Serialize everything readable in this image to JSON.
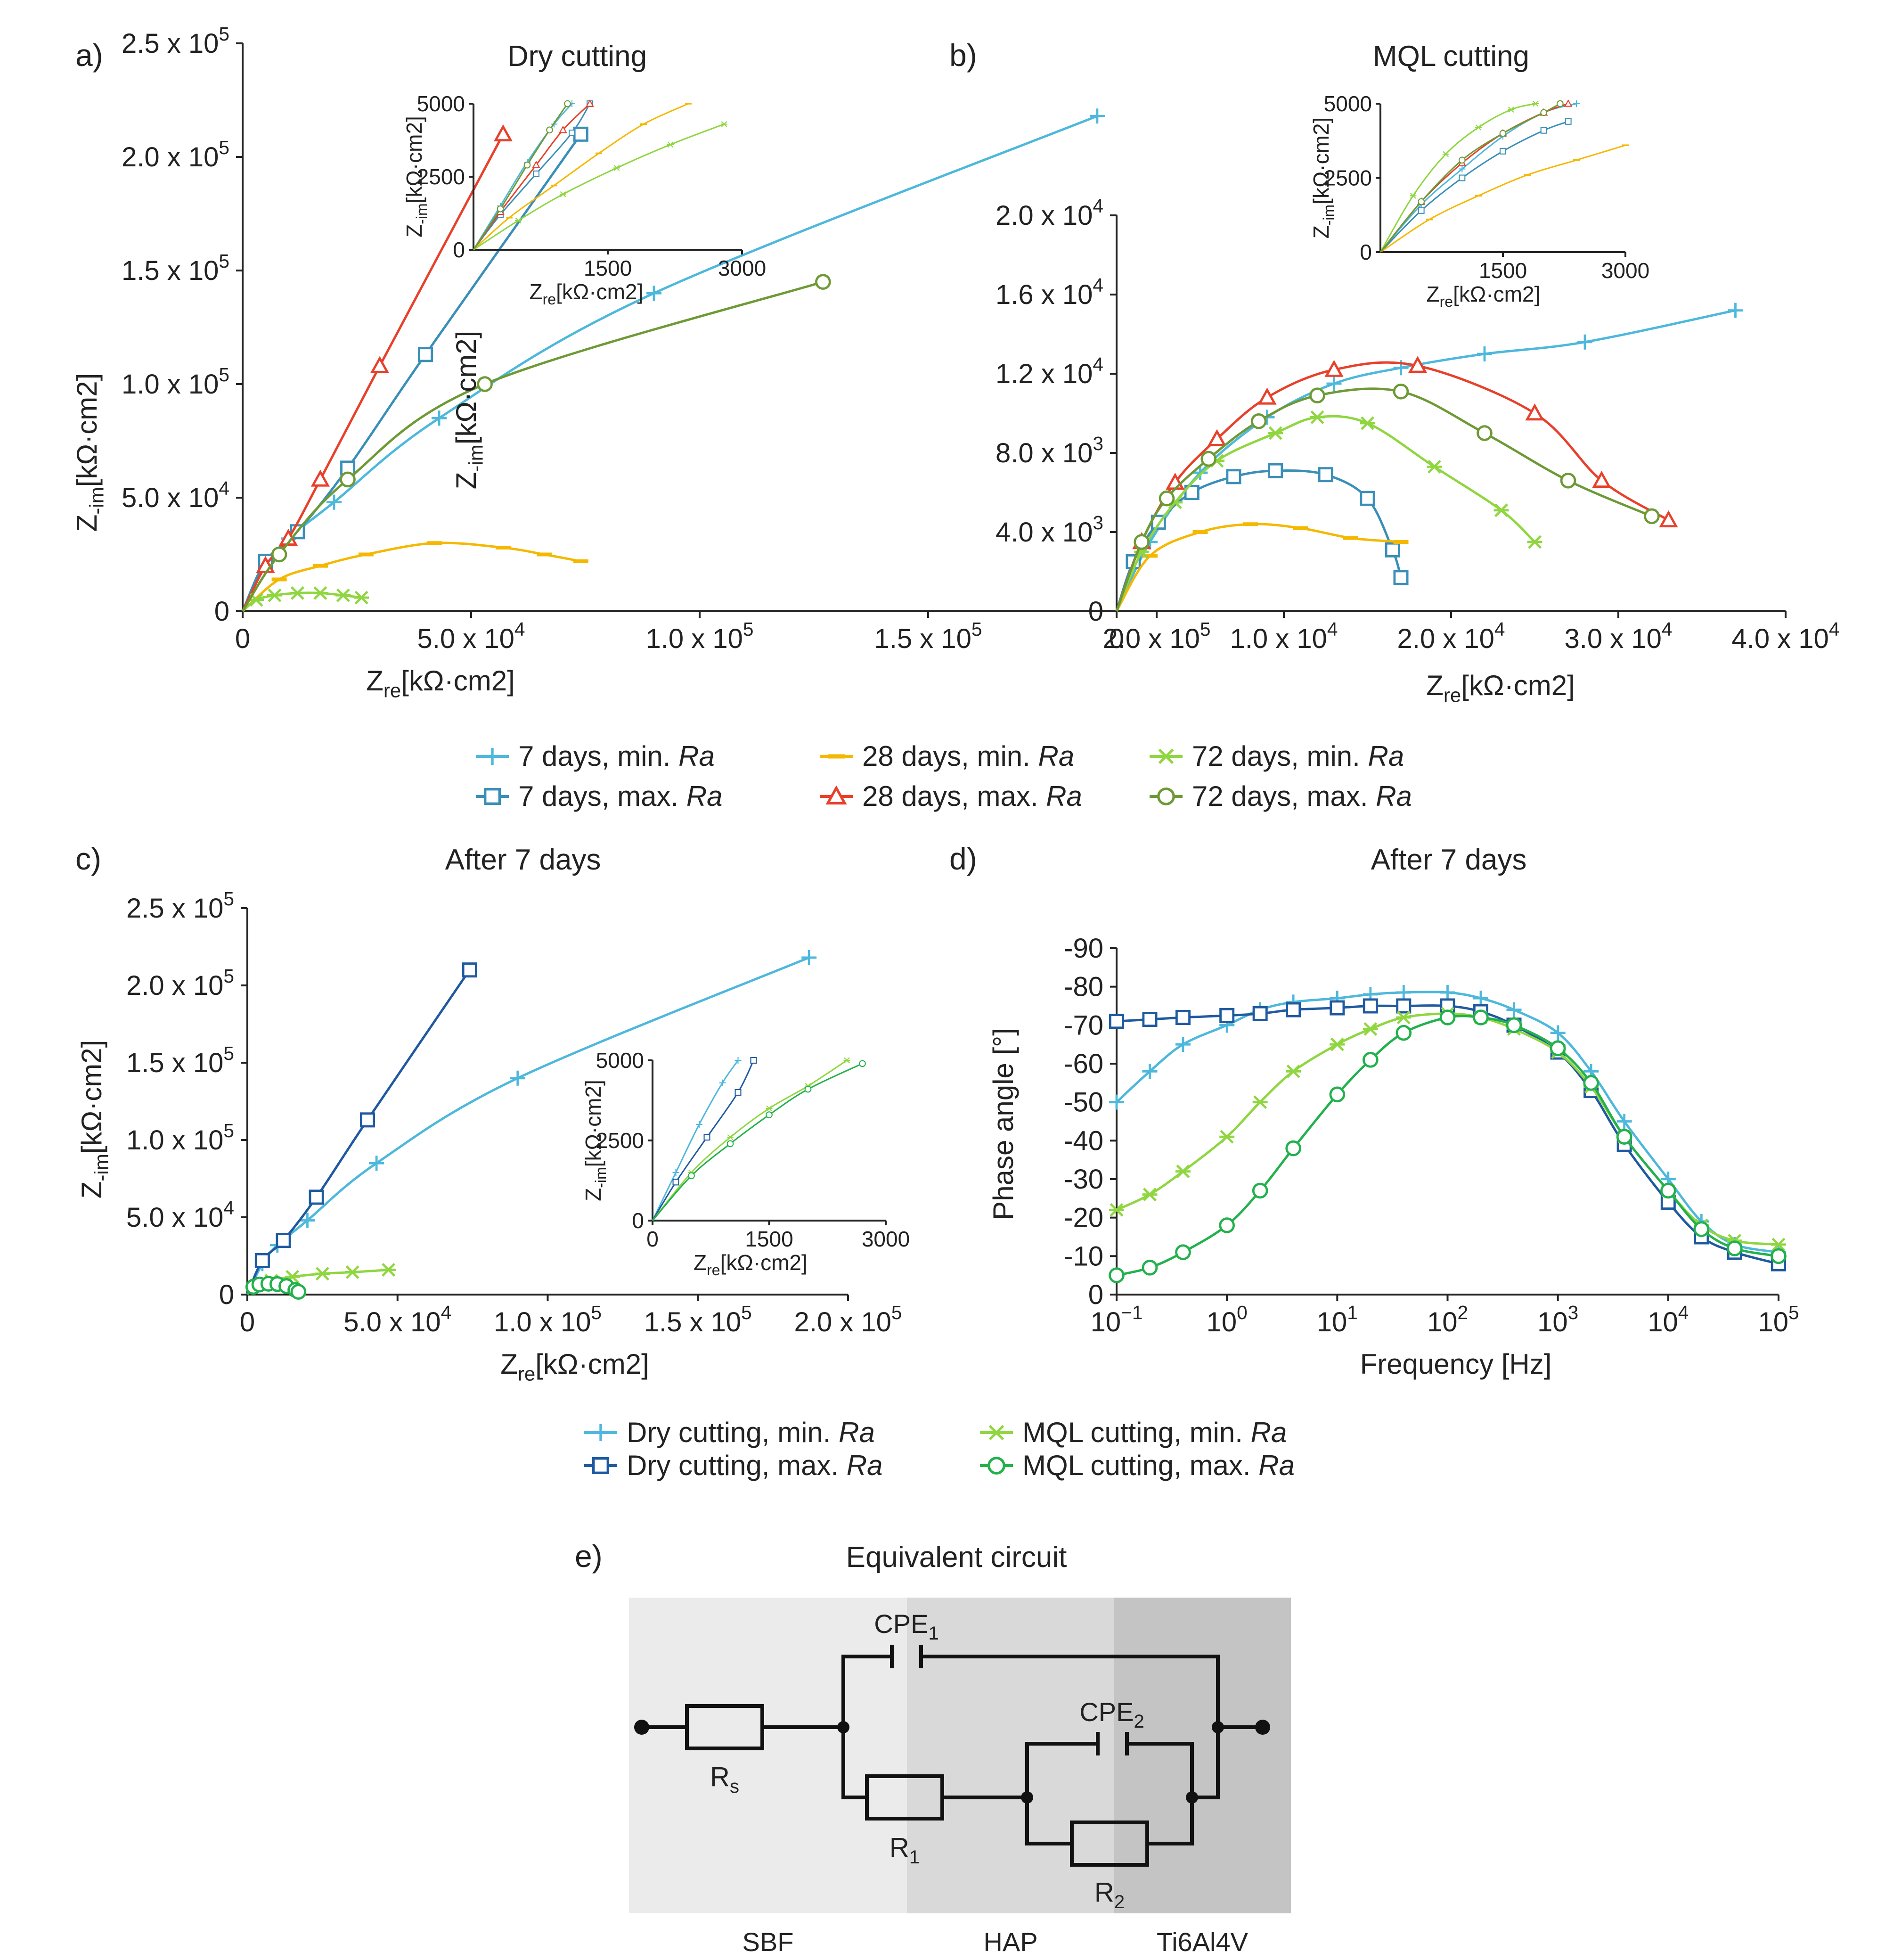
{
  "colors": {
    "dry_7_min": "#4db8dc",
    "dry_7_max": "#3a8fb8",
    "dry_28_min": "#f5b800",
    "dry_28_max": "#e8402a",
    "dry_72_min": "#8fd640",
    "dry_72_max": "#6e9a36",
    "c_dry_min": "#4db8dc",
    "c_dry_max": "#1f5aa0",
    "c_mql_min": "#8fd640",
    "c_mql_max": "#22b14c"
  },
  "panel_letters": {
    "a": "a)",
    "b": "b)",
    "c": "c)",
    "d": "d)",
    "e": "e)"
  },
  "chart_data": [
    {
      "id": "a",
      "type": "line",
      "title": "Dry cutting",
      "xlabel": "Zre[kΩ·cm²]",
      "ylabel": "Z-im[kΩ·cm²]",
      "xlim": [
        0,
        200000
      ],
      "ylim": [
        0,
        250000
      ],
      "xticks": [
        "0",
        "5.0 x 10⁴",
        "1.0 x 10⁵",
        "1.5 x 10⁵",
        "2.0 x 10⁵"
      ],
      "yticks": [
        "0",
        "5.0 x 10⁴",
        "1.0 x 10⁵",
        "1.5 x 10⁵",
        "2.0 x 10⁵",
        "2.5 x 10⁵"
      ],
      "series": [
        {
          "name": "7 days, min. Ra",
          "marker": "plus",
          "x": [
            0,
            5000,
            10000,
            20000,
            43000,
            90000,
            187000
          ],
          "y": [
            0,
            20000,
            32000,
            48000,
            85000,
            140000,
            218000
          ]
        },
        {
          "name": "7 days, max. Ra",
          "marker": "square",
          "x": [
            0,
            5000,
            12000,
            23000,
            40000,
            74000
          ],
          "y": [
            0,
            22000,
            35000,
            63000,
            113000,
            210000
          ]
        },
        {
          "name": "28 days, min. Ra",
          "marker": "dash",
          "x": [
            0,
            8000,
            17000,
            27000,
            42000,
            57000,
            66000,
            74000
          ],
          "y": [
            0,
            14000,
            20000,
            25000,
            30000,
            28000,
            25000,
            22000
          ]
        },
        {
          "name": "28 days, max. Ra",
          "marker": "triangle",
          "x": [
            0,
            5000,
            10000,
            17000,
            30000,
            57000
          ],
          "y": [
            0,
            20000,
            32000,
            58000,
            108000,
            210000
          ]
        },
        {
          "name": "72 days, min. Ra",
          "marker": "star",
          "x": [
            0,
            3000,
            7000,
            12000,
            17000,
            22000,
            26000
          ],
          "y": [
            0,
            5000,
            7000,
            8000,
            8000,
            7000,
            6000
          ]
        },
        {
          "name": "72 days, max. Ra",
          "marker": "circle",
          "x": [
            0,
            8000,
            23000,
            53000,
            127000
          ],
          "y": [
            0,
            25000,
            58000,
            100000,
            145000
          ]
        }
      ],
      "inset": {
        "xlabel": "Zre[kΩ·cm²]",
        "ylabel": "Z-im[kΩ·cm²]",
        "xlim": [
          0,
          3000
        ],
        "ylim": [
          0,
          5000
        ],
        "xticks": [
          "1500",
          "3000"
        ],
        "yticks": [
          "0",
          "2500",
          "5000"
        ],
        "series": [
          {
            "marker": "plus",
            "x": [
              0,
              300,
              600,
              900,
              1100
            ],
            "y": [
              0,
              1500,
              3000,
              4300,
              5000
            ]
          },
          {
            "marker": "square",
            "x": [
              0,
              300,
              700,
              1100,
              1300
            ],
            "y": [
              0,
              1200,
              2600,
              4000,
              5000
            ]
          },
          {
            "marker": "dash",
            "x": [
              0,
              400,
              900,
              1400,
              1900,
              2400
            ],
            "y": [
              0,
              1100,
              2200,
              3300,
              4300,
              5000
            ]
          },
          {
            "marker": "triangle",
            "x": [
              0,
              300,
              700,
              1000,
              1300
            ],
            "y": [
              0,
              1300,
              2900,
              4100,
              5000
            ]
          },
          {
            "marker": "star",
            "x": [
              0,
              500,
              1000,
              1600,
              2200,
              2800
            ],
            "y": [
              0,
              1000,
              1900,
              2800,
              3600,
              4300
            ]
          },
          {
            "marker": "circle",
            "x": [
              0,
              300,
              600,
              850,
              1050
            ],
            "y": [
              0,
              1400,
              2900,
              4100,
              5000
            ]
          }
        ]
      }
    },
    {
      "id": "b",
      "type": "line",
      "title": "MQL cutting",
      "xlabel": "Zre[kΩ·cm²]",
      "ylabel": "Z-im[kΩ·cm²]",
      "xlim": [
        0,
        40000
      ],
      "ylim": [
        0,
        20000
      ],
      "xticks": [
        "0",
        "1.0 x 10⁴",
        "2.0 x 10⁴",
        "3.0 x 10⁴",
        "4.0 x 10⁴"
      ],
      "yticks": [
        "0",
        "4.0 x 10³",
        "8.0 x 10³",
        "1.2 x 10⁴",
        "1.6 x 10⁴",
        "2.0 x 10⁴"
      ],
      "series": [
        {
          "name": "7 days, min. Ra",
          "marker": "plus",
          "x": [
            0,
            2000,
            5000,
            9000,
            13000,
            17000,
            22000,
            28000,
            37000
          ],
          "y": [
            0,
            3500,
            7000,
            9800,
            11500,
            12300,
            13000,
            13600,
            15200
          ]
        },
        {
          "name": "7 days, max. Ra",
          "marker": "square",
          "x": [
            0,
            1000,
            2500,
            4500,
            7000,
            9500,
            12500,
            15000,
            16500,
            17000
          ],
          "y": [
            0,
            2500,
            4500,
            6000,
            6800,
            7100,
            6900,
            5700,
            3100,
            1700
          ]
        },
        {
          "name": "28 days, min. Ra",
          "marker": "dash",
          "x": [
            0,
            2000,
            5000,
            8000,
            11000,
            14000,
            17000
          ],
          "y": [
            0,
            2800,
            4000,
            4400,
            4200,
            3700,
            3500
          ]
        },
        {
          "name": "28 days, max. Ra",
          "marker": "triangle",
          "x": [
            0,
            1500,
            3500,
            6000,
            9000,
            13000,
            18000,
            25000,
            29000,
            33000
          ],
          "y": [
            0,
            3500,
            6500,
            8700,
            10800,
            12200,
            12400,
            10000,
            6600,
            4600
          ]
        },
        {
          "name": "72 days, min. Ra",
          "marker": "star",
          "x": [
            0,
            1500,
            3500,
            6000,
            9500,
            12000,
            15000,
            19000,
            23000,
            25000
          ],
          "y": [
            0,
            3000,
            5500,
            7600,
            9000,
            9800,
            9500,
            7300,
            5100,
            3500
          ]
        },
        {
          "name": "72 days, max. Ra",
          "marker": "circle",
          "x": [
            0,
            1500,
            3000,
            5500,
            8500,
            12000,
            17000,
            22000,
            27000,
            32000
          ],
          "y": [
            0,
            3500,
            5700,
            7700,
            9600,
            10900,
            11100,
            9000,
            6600,
            4800
          ]
        }
      ],
      "inset": {
        "xlabel": "Zre[kΩ·cm²]",
        "ylabel": "Z-im[kΩ·cm²]",
        "xlim": [
          0,
          3000
        ],
        "ylim": [
          0,
          5000
        ],
        "xticks": [
          "1500",
          "3000"
        ],
        "yticks": [
          "0",
          "2500",
          "5000"
        ],
        "series": [
          {
            "marker": "plus",
            "x": [
              0,
              500,
              1000,
              1500,
              2000,
              2400
            ],
            "y": [
              0,
              1600,
              2800,
              3900,
              4700,
              5000
            ]
          },
          {
            "marker": "square",
            "x": [
              0,
              500,
              1000,
              1500,
              2000,
              2300
            ],
            "y": [
              0,
              1400,
              2500,
              3400,
              4100,
              4400
            ]
          },
          {
            "marker": "dash",
            "x": [
              0,
              600,
              1200,
              1800,
              2400,
              3000
            ],
            "y": [
              0,
              1100,
              1900,
              2600,
              3100,
              3600
            ]
          },
          {
            "marker": "triangle",
            "x": [
              0,
              500,
              1000,
              1500,
              2000,
              2300
            ],
            "y": [
              0,
              1700,
              3000,
              4000,
              4700,
              5000
            ]
          },
          {
            "marker": "star",
            "x": [
              0,
              400,
              800,
              1200,
              1600,
              1900
            ],
            "y": [
              0,
              1900,
              3300,
              4200,
              4800,
              5000
            ]
          },
          {
            "marker": "circle",
            "x": [
              0,
              500,
              1000,
              1500,
              2000,
              2200
            ],
            "y": [
              0,
              1700,
              3100,
              4000,
              4700,
              5000
            ]
          }
        ]
      }
    },
    {
      "id": "c",
      "type": "line",
      "title": "After 7 days",
      "xlabel": "Zre[kΩ·cm²]",
      "ylabel": "Z-im[kΩ·cm²]",
      "xlim": [
        0,
        200000
      ],
      "ylim": [
        0,
        250000
      ],
      "xticks": [
        "0",
        "5.0 x 10⁴",
        "1.0 x 10⁵",
        "1.5 x 10⁵",
        "2.0 x 10⁵"
      ],
      "yticks": [
        "0",
        "5.0 x 10⁴",
        "1.0 x 10⁵",
        "1.5 x 10⁵",
        "2.0 x 10⁵",
        "2.5 x 10⁵"
      ],
      "series": [
        {
          "name": "Dry cutting, min. Ra",
          "marker": "plus",
          "x": [
            0,
            5000,
            10000,
            20000,
            43000,
            90000,
            187000
          ],
          "y": [
            0,
            20000,
            32000,
            48000,
            85000,
            140000,
            218000
          ]
        },
        {
          "name": "Dry cutting, max. Ra",
          "marker": "square",
          "x": [
            0,
            5000,
            12000,
            23000,
            40000,
            74000
          ],
          "y": [
            0,
            22000,
            35000,
            63000,
            113000,
            210000
          ]
        },
        {
          "name": "MQL cutting, min. Ra",
          "marker": "star",
          "x": [
            0,
            3000,
            8000,
            15000,
            25000,
            35000,
            47000
          ],
          "y": [
            0,
            6000,
            9000,
            11500,
            13500,
            14500,
            16000
          ]
        },
        {
          "name": "MQL cutting, max. Ra",
          "marker": "circle",
          "x": [
            0,
            2000,
            4000,
            7000,
            10000,
            13000,
            16000,
            17000
          ],
          "y": [
            0,
            5000,
            6500,
            7000,
            6800,
            5500,
            3000,
            1800
          ]
        }
      ],
      "inset": {
        "xlabel": "Zre[kΩ·cm²]",
        "ylabel": "Z-im[kΩ·cm²]",
        "xlim": [
          0,
          3000
        ],
        "ylim": [
          0,
          5000
        ],
        "xticks": [
          "0",
          "1500",
          "3000"
        ],
        "yticks": [
          "0",
          "2500",
          "5000"
        ],
        "series": [
          {
            "marker": "plus",
            "x": [
              0,
              300,
              600,
              900,
              1100
            ],
            "y": [
              0,
              1500,
              3000,
              4300,
              5000
            ]
          },
          {
            "marker": "square",
            "x": [
              0,
              300,
              700,
              1100,
              1300
            ],
            "y": [
              0,
              1200,
              2600,
              4000,
              5000
            ]
          },
          {
            "marker": "star",
            "x": [
              0,
              500,
              1000,
              1500,
              2000,
              2500
            ],
            "y": [
              0,
              1500,
              2600,
              3500,
              4200,
              5000
            ]
          },
          {
            "marker": "circle",
            "x": [
              0,
              500,
              1000,
              1500,
              2000,
              2700
            ],
            "y": [
              0,
              1400,
              2400,
              3300,
              4100,
              4900
            ]
          }
        ]
      }
    },
    {
      "id": "d",
      "type": "line",
      "title": "After 7 days",
      "xlabel": "Frequency [Hz]",
      "ylabel": "Phase angle [°]",
      "xscale": "log",
      "xlim": [
        0.1,
        100000
      ],
      "ylim": [
        0,
        -90
      ],
      "xticks": [
        "10⁻¹",
        "10⁰",
        "10¹",
        "10²",
        "10³",
        "10⁴",
        "10⁵"
      ],
      "yticks": [
        "0",
        "-10",
        "-20",
        "-30",
        "-40",
        "-50",
        "-60",
        "-70",
        "-80",
        "-90"
      ],
      "x": [
        0.1,
        0.2,
        0.4,
        1,
        2,
        4,
        10,
        20,
        40,
        100,
        200,
        400,
        1000,
        2000,
        4000,
        10000,
        20000,
        40000,
        100000
      ],
      "series": [
        {
          "name": "Dry cutting, min. Ra",
          "marker": "plus",
          "y": [
            -50,
            -58,
            -65,
            -70,
            -74,
            -76,
            -77,
            -78,
            -78.5,
            -78.5,
            -77,
            -74,
            -68,
            -58,
            -45,
            -30,
            -19,
            -13,
            -11
          ]
        },
        {
          "name": "Dry cutting, max. Ra",
          "marker": "square",
          "y": [
            -71,
            -71.5,
            -72,
            -72.5,
            -73,
            -74,
            -74.5,
            -75,
            -75,
            -75,
            -73.5,
            -70,
            -63,
            -53,
            -39,
            -24,
            -15,
            -11,
            -8
          ]
        },
        {
          "name": "MQL cutting, min. Ra",
          "marker": "star",
          "y": [
            -22,
            -26,
            -32,
            -41,
            -50,
            -58,
            -65,
            -69,
            -72,
            -73,
            -72,
            -69,
            -63,
            -54,
            -41,
            -27,
            -18,
            -14,
            -13
          ]
        },
        {
          "name": "MQL cutting, max. Ra",
          "marker": "circle",
          "y": [
            -5,
            -7,
            -11,
            -18,
            -27,
            -38,
            -52,
            -61,
            -68,
            -72,
            -72,
            -70,
            -64,
            -55,
            -41,
            -27,
            -17,
            -12,
            -10
          ]
        }
      ]
    }
  ],
  "legend_ab": [
    {
      "label": "7 days, min. ",
      "italic": "Ra",
      "marker": "plus",
      "color_key": "dry_7_min"
    },
    {
      "label": "7 days, max. ",
      "italic": "Ra",
      "marker": "square",
      "color_key": "dry_7_max"
    },
    {
      "label": "28 days, min. ",
      "italic": "Ra",
      "marker": "dash",
      "color_key": "dry_28_min"
    },
    {
      "label": "28 days, max. ",
      "italic": "Ra",
      "marker": "triangle",
      "color_key": "dry_28_max"
    },
    {
      "label": "72 days, min. ",
      "italic": "Ra",
      "marker": "star",
      "color_key": "dry_72_min"
    },
    {
      "label": "72 days, max. ",
      "italic": "Ra",
      "marker": "circle",
      "color_key": "dry_72_max"
    }
  ],
  "legend_cd": [
    {
      "label": "Dry cutting, min. ",
      "italic": "Ra",
      "marker": "plus",
      "color_key": "c_dry_min"
    },
    {
      "label": "Dry cutting, max. ",
      "italic": "Ra",
      "marker": "square",
      "color_key": "c_dry_max"
    },
    {
      "label": "MQL cutting, min. ",
      "italic": "Ra",
      "marker": "star",
      "color_key": "c_mql_min"
    },
    {
      "label": "MQL cutting, max. ",
      "italic": "Ra",
      "marker": "circle",
      "color_key": "c_mql_max"
    }
  ],
  "circuit": {
    "title": "Equivalent circuit",
    "regions": [
      {
        "label": "SBF",
        "color": "#ebebeb"
      },
      {
        "label": "HAP",
        "color": "#d9d9d9"
      },
      {
        "label": "Ti6Al4V",
        "color": "#c4c4c4"
      }
    ],
    "components": {
      "rs": "Rs",
      "r1": "R1",
      "r2": "R2",
      "cpe1": "CPE1",
      "cpe2": "CPE2"
    }
  }
}
